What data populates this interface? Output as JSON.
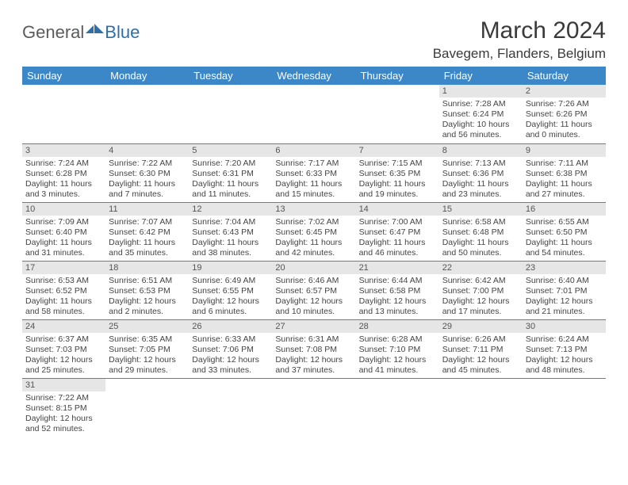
{
  "brand": {
    "part1": "General",
    "part2": "Blue"
  },
  "title": {
    "month": "March 2024",
    "location": "Bavegem, Flanders, Belgium"
  },
  "style": {
    "header_bg": "#3b87c8",
    "header_fg": "#ffffff",
    "rule_color": "#3b87c8",
    "daynum_bg": "#e6e6e6",
    "text_color": "#444444",
    "brand_gray": "#5b5b5b",
    "brand_blue": "#2f6fa8"
  },
  "weekdays": [
    "Sunday",
    "Monday",
    "Tuesday",
    "Wednesday",
    "Thursday",
    "Friday",
    "Saturday"
  ],
  "weeks": [
    [
      {
        "n": "",
        "sr": "",
        "ss": "",
        "dl": ""
      },
      {
        "n": "",
        "sr": "",
        "ss": "",
        "dl": ""
      },
      {
        "n": "",
        "sr": "",
        "ss": "",
        "dl": ""
      },
      {
        "n": "",
        "sr": "",
        "ss": "",
        "dl": ""
      },
      {
        "n": "",
        "sr": "",
        "ss": "",
        "dl": ""
      },
      {
        "n": "1",
        "sr": "Sunrise: 7:28 AM",
        "ss": "Sunset: 6:24 PM",
        "dl": "Daylight: 10 hours and 56 minutes."
      },
      {
        "n": "2",
        "sr": "Sunrise: 7:26 AM",
        "ss": "Sunset: 6:26 PM",
        "dl": "Daylight: 11 hours and 0 minutes."
      }
    ],
    [
      {
        "n": "3",
        "sr": "Sunrise: 7:24 AM",
        "ss": "Sunset: 6:28 PM",
        "dl": "Daylight: 11 hours and 3 minutes."
      },
      {
        "n": "4",
        "sr": "Sunrise: 7:22 AM",
        "ss": "Sunset: 6:30 PM",
        "dl": "Daylight: 11 hours and 7 minutes."
      },
      {
        "n": "5",
        "sr": "Sunrise: 7:20 AM",
        "ss": "Sunset: 6:31 PM",
        "dl": "Daylight: 11 hours and 11 minutes."
      },
      {
        "n": "6",
        "sr": "Sunrise: 7:17 AM",
        "ss": "Sunset: 6:33 PM",
        "dl": "Daylight: 11 hours and 15 minutes."
      },
      {
        "n": "7",
        "sr": "Sunrise: 7:15 AM",
        "ss": "Sunset: 6:35 PM",
        "dl": "Daylight: 11 hours and 19 minutes."
      },
      {
        "n": "8",
        "sr": "Sunrise: 7:13 AM",
        "ss": "Sunset: 6:36 PM",
        "dl": "Daylight: 11 hours and 23 minutes."
      },
      {
        "n": "9",
        "sr": "Sunrise: 7:11 AM",
        "ss": "Sunset: 6:38 PM",
        "dl": "Daylight: 11 hours and 27 minutes."
      }
    ],
    [
      {
        "n": "10",
        "sr": "Sunrise: 7:09 AM",
        "ss": "Sunset: 6:40 PM",
        "dl": "Daylight: 11 hours and 31 minutes."
      },
      {
        "n": "11",
        "sr": "Sunrise: 7:07 AM",
        "ss": "Sunset: 6:42 PM",
        "dl": "Daylight: 11 hours and 35 minutes."
      },
      {
        "n": "12",
        "sr": "Sunrise: 7:04 AM",
        "ss": "Sunset: 6:43 PM",
        "dl": "Daylight: 11 hours and 38 minutes."
      },
      {
        "n": "13",
        "sr": "Sunrise: 7:02 AM",
        "ss": "Sunset: 6:45 PM",
        "dl": "Daylight: 11 hours and 42 minutes."
      },
      {
        "n": "14",
        "sr": "Sunrise: 7:00 AM",
        "ss": "Sunset: 6:47 PM",
        "dl": "Daylight: 11 hours and 46 minutes."
      },
      {
        "n": "15",
        "sr": "Sunrise: 6:58 AM",
        "ss": "Sunset: 6:48 PM",
        "dl": "Daylight: 11 hours and 50 minutes."
      },
      {
        "n": "16",
        "sr": "Sunrise: 6:55 AM",
        "ss": "Sunset: 6:50 PM",
        "dl": "Daylight: 11 hours and 54 minutes."
      }
    ],
    [
      {
        "n": "17",
        "sr": "Sunrise: 6:53 AM",
        "ss": "Sunset: 6:52 PM",
        "dl": "Daylight: 11 hours and 58 minutes."
      },
      {
        "n": "18",
        "sr": "Sunrise: 6:51 AM",
        "ss": "Sunset: 6:53 PM",
        "dl": "Daylight: 12 hours and 2 minutes."
      },
      {
        "n": "19",
        "sr": "Sunrise: 6:49 AM",
        "ss": "Sunset: 6:55 PM",
        "dl": "Daylight: 12 hours and 6 minutes."
      },
      {
        "n": "20",
        "sr": "Sunrise: 6:46 AM",
        "ss": "Sunset: 6:57 PM",
        "dl": "Daylight: 12 hours and 10 minutes."
      },
      {
        "n": "21",
        "sr": "Sunrise: 6:44 AM",
        "ss": "Sunset: 6:58 PM",
        "dl": "Daylight: 12 hours and 13 minutes."
      },
      {
        "n": "22",
        "sr": "Sunrise: 6:42 AM",
        "ss": "Sunset: 7:00 PM",
        "dl": "Daylight: 12 hours and 17 minutes."
      },
      {
        "n": "23",
        "sr": "Sunrise: 6:40 AM",
        "ss": "Sunset: 7:01 PM",
        "dl": "Daylight: 12 hours and 21 minutes."
      }
    ],
    [
      {
        "n": "24",
        "sr": "Sunrise: 6:37 AM",
        "ss": "Sunset: 7:03 PM",
        "dl": "Daylight: 12 hours and 25 minutes."
      },
      {
        "n": "25",
        "sr": "Sunrise: 6:35 AM",
        "ss": "Sunset: 7:05 PM",
        "dl": "Daylight: 12 hours and 29 minutes."
      },
      {
        "n": "26",
        "sr": "Sunrise: 6:33 AM",
        "ss": "Sunset: 7:06 PM",
        "dl": "Daylight: 12 hours and 33 minutes."
      },
      {
        "n": "27",
        "sr": "Sunrise: 6:31 AM",
        "ss": "Sunset: 7:08 PM",
        "dl": "Daylight: 12 hours and 37 minutes."
      },
      {
        "n": "28",
        "sr": "Sunrise: 6:28 AM",
        "ss": "Sunset: 7:10 PM",
        "dl": "Daylight: 12 hours and 41 minutes."
      },
      {
        "n": "29",
        "sr": "Sunrise: 6:26 AM",
        "ss": "Sunset: 7:11 PM",
        "dl": "Daylight: 12 hours and 45 minutes."
      },
      {
        "n": "30",
        "sr": "Sunrise: 6:24 AM",
        "ss": "Sunset: 7:13 PM",
        "dl": "Daylight: 12 hours and 48 minutes."
      }
    ],
    [
      {
        "n": "31",
        "sr": "Sunrise: 7:22 AM",
        "ss": "Sunset: 8:15 PM",
        "dl": "Daylight: 12 hours and 52 minutes."
      },
      {
        "n": "",
        "sr": "",
        "ss": "",
        "dl": ""
      },
      {
        "n": "",
        "sr": "",
        "ss": "",
        "dl": ""
      },
      {
        "n": "",
        "sr": "",
        "ss": "",
        "dl": ""
      },
      {
        "n": "",
        "sr": "",
        "ss": "",
        "dl": ""
      },
      {
        "n": "",
        "sr": "",
        "ss": "",
        "dl": ""
      },
      {
        "n": "",
        "sr": "",
        "ss": "",
        "dl": ""
      }
    ]
  ]
}
